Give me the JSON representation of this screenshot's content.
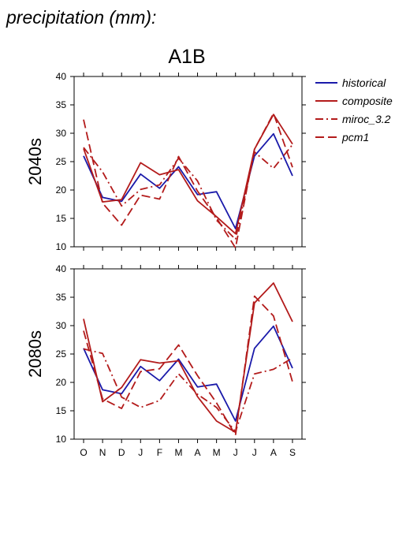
{
  "header": {
    "title": "precipitation (mm):",
    "subtitle": "A1B"
  },
  "legend": {
    "placement": "top-right",
    "items": [
      {
        "label": "historical",
        "color": "#1a1aaa",
        "dash": "solid"
      },
      {
        "label": "composite",
        "color": "#b31b1b",
        "dash": "solid"
      },
      {
        "label": "miroc_3.2",
        "color": "#b31b1b",
        "dash": "dashdot"
      },
      {
        "label": "pcm1",
        "color": "#b31b1b",
        "dash": "dashed"
      }
    ]
  },
  "chart_data": [
    {
      "type": "line",
      "title": "2040s",
      "ylabel": "2040s",
      "ylim": [
        10,
        40
      ],
      "yticks": [
        "10",
        "15",
        "20",
        "25",
        "30",
        "35",
        "40"
      ],
      "categories": [
        "O",
        "N",
        "D",
        "J",
        "F",
        "M",
        "A",
        "M",
        "J",
        "J",
        "A",
        "S"
      ],
      "grid": false,
      "series": [
        {
          "name": "historical",
          "values": [
            26.0,
            18.7,
            18.0,
            22.8,
            20.3,
            24.1,
            19.2,
            19.7,
            13.2,
            26.0,
            29.9,
            22.5
          ]
        },
        {
          "name": "composite",
          "values": [
            27.3,
            17.9,
            18.3,
            24.8,
            22.7,
            23.6,
            18.1,
            15.3,
            12.3,
            27.2,
            33.3,
            28.1
          ]
        },
        {
          "name": "miroc_3.2",
          "values": [
            27.5,
            23.2,
            17.2,
            20.1,
            20.9,
            25.6,
            21.6,
            14.7,
            11.3,
            26.7,
            23.8,
            28.0
          ]
        },
        {
          "name": "pcm1",
          "values": [
            32.4,
            17.7,
            13.8,
            19.1,
            18.4,
            25.9,
            19.8,
            15.1,
            9.8,
            27.2,
            33.5,
            24.0
          ]
        }
      ]
    },
    {
      "type": "line",
      "title": "2080s",
      "ylabel": "2080s",
      "ylim": [
        10,
        40
      ],
      "yticks": [
        "10",
        "15",
        "20",
        "25",
        "30",
        "35",
        "40"
      ],
      "categories": [
        "O",
        "N",
        "D",
        "J",
        "F",
        "M",
        "A",
        "M",
        "J",
        "J",
        "A",
        "S"
      ],
      "grid": false,
      "series": [
        {
          "name": "historical",
          "values": [
            26.0,
            18.7,
            18.0,
            22.8,
            20.3,
            24.1,
            19.2,
            19.7,
            13.2,
            26.0,
            29.9,
            22.5
          ]
        },
        {
          "name": "composite",
          "values": [
            31.2,
            16.6,
            19.1,
            24.0,
            23.4,
            23.8,
            17.5,
            13.2,
            11.2,
            34.0,
            37.5,
            30.7
          ]
        },
        {
          "name": "miroc_3.2",
          "values": [
            25.9,
            25.1,
            17.4,
            15.6,
            16.8,
            21.5,
            17.9,
            15.6,
            11.3,
            21.5,
            22.3,
            24.3
          ]
        },
        {
          "name": "pcm1",
          "values": [
            29.1,
            17.1,
            15.4,
            21.9,
            22.4,
            26.6,
            21.2,
            16.4,
            10.7,
            35.2,
            31.7,
            20.1
          ]
        }
      ]
    }
  ]
}
